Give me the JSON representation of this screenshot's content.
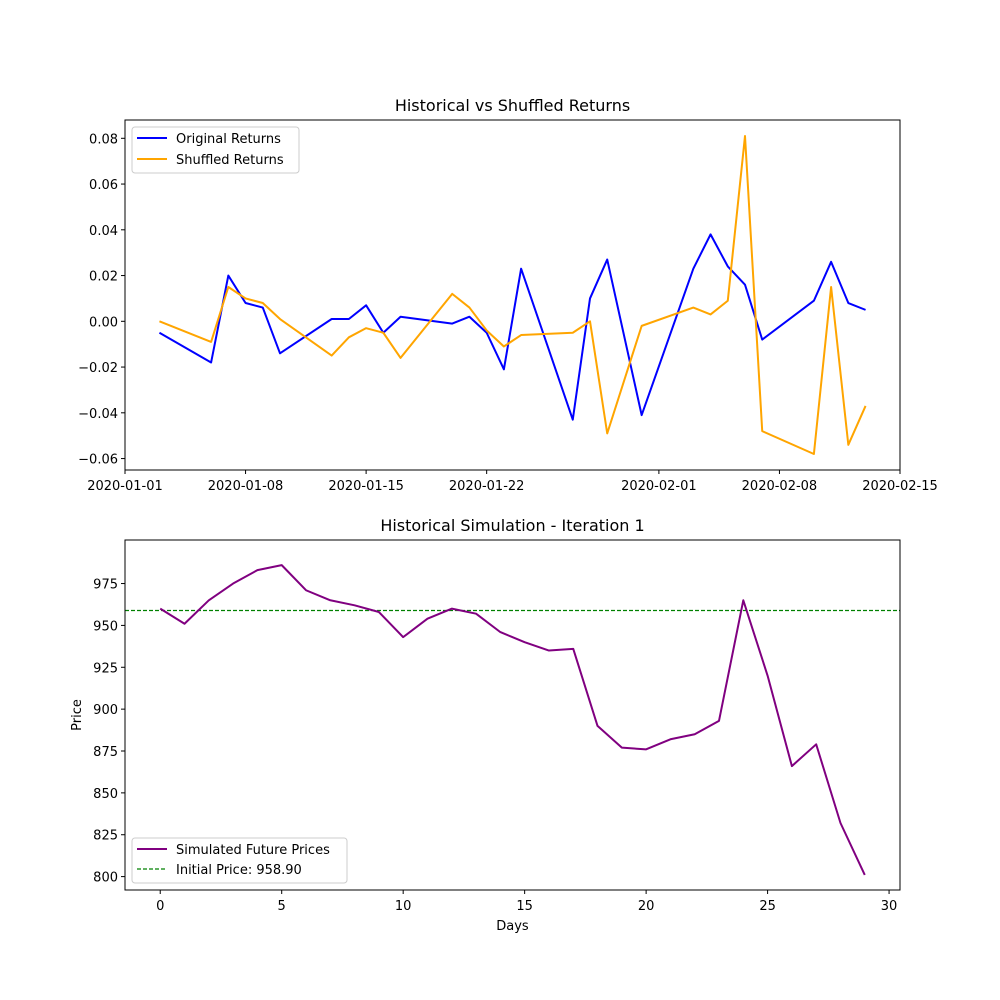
{
  "chart_data": [
    {
      "type": "line",
      "title": "Historical vs Shuffled Returns",
      "xlabel": "",
      "ylabel": "",
      "x_type": "date",
      "xlim": [
        "2020-01-01",
        "2020-02-15"
      ],
      "ylim": [
        -0.065,
        0.088
      ],
      "xticks": [
        "2020-01-01",
        "2020-01-08",
        "2020-01-15",
        "2020-01-22",
        "2020-02-01",
        "2020-02-08",
        "2020-02-15"
      ],
      "yticks": [
        -0.06,
        -0.04,
        -0.02,
        0.0,
        0.02,
        0.04,
        0.06,
        0.08
      ],
      "ytick_labels": [
        "−0.06",
        "−0.04",
        "−0.02",
        "0.00",
        "0.02",
        "0.04",
        "0.06",
        "0.08"
      ],
      "x": [
        "2020-01-03",
        "2020-01-06",
        "2020-01-07",
        "2020-01-08",
        "2020-01-09",
        "2020-01-10",
        "2020-01-13",
        "2020-01-14",
        "2020-01-15",
        "2020-01-16",
        "2020-01-17",
        "2020-01-20",
        "2020-01-21",
        "2020-01-22",
        "2020-01-23",
        "2020-01-24",
        "2020-01-27",
        "2020-01-28",
        "2020-01-29",
        "2020-01-31",
        "2020-02-03",
        "2020-02-04",
        "2020-02-05",
        "2020-02-06",
        "2020-02-07",
        "2020-02-10",
        "2020-02-11",
        "2020-02-12",
        "2020-02-13"
      ],
      "series": [
        {
          "name": "Original Returns",
          "color": "#0000ff",
          "values": [
            -0.005,
            -0.018,
            0.02,
            0.008,
            0.006,
            -0.014,
            0.001,
            0.001,
            0.007,
            -0.005,
            0.002,
            -0.001,
            0.002,
            -0.005,
            -0.021,
            0.023,
            -0.043,
            0.01,
            0.027,
            -0.041,
            0.023,
            0.038,
            0.024,
            0.016,
            -0.008,
            0.009,
            0.026,
            0.008,
            0.005
          ]
        },
        {
          "name": "Shuffled Returns",
          "color": "#ffa500",
          "values": [
            0.0,
            -0.009,
            0.015,
            0.01,
            0.008,
            0.001,
            -0.015,
            -0.007,
            -0.003,
            -0.005,
            -0.016,
            0.012,
            0.006,
            -0.004,
            -0.011,
            -0.006,
            -0.005,
            0.0,
            -0.049,
            -0.002,
            0.006,
            0.003,
            0.009,
            0.081,
            -0.048,
            -0.058,
            0.015,
            -0.054,
            -0.037
          ]
        }
      ],
      "legend_position": "upper-left"
    },
    {
      "type": "line",
      "title": "Historical Simulation - Iteration 1",
      "xlabel": "Days",
      "ylabel": "Price",
      "xlim": [
        -1.45,
        30.45
      ],
      "ylim": [
        792,
        1001
      ],
      "xticks": [
        0,
        5,
        10,
        15,
        20,
        25,
        30
      ],
      "xtick_labels": [
        "0",
        "5",
        "10",
        "15",
        "20",
        "25",
        "30"
      ],
      "yticks": [
        800,
        825,
        850,
        875,
        900,
        925,
        950,
        975
      ],
      "ytick_labels": [
        "800",
        "825",
        "850",
        "875",
        "900",
        "925",
        "950",
        "975"
      ],
      "x": [
        0,
        1,
        2,
        3,
        4,
        5,
        6,
        7,
        8,
        9,
        10,
        11,
        12,
        13,
        14,
        15,
        16,
        17,
        18,
        19,
        20,
        21,
        22,
        23,
        24,
        25,
        26,
        27,
        28,
        29
      ],
      "series": [
        {
          "name": "Simulated Future Prices",
          "color": "#800080",
          "values": [
            960,
            951,
            965,
            975,
            983,
            986,
            971,
            965,
            962,
            958,
            943,
            954,
            960,
            957,
            946,
            940,
            935,
            936,
            890,
            877,
            876,
            882,
            885,
            893,
            965,
            920,
            866,
            879,
            832,
            801
          ]
        }
      ],
      "reference_line": {
        "name": "Initial Price: 958.90",
        "value": 958.9,
        "color": "#008000",
        "style": "dashed"
      },
      "legend_position": "lower-left"
    }
  ]
}
